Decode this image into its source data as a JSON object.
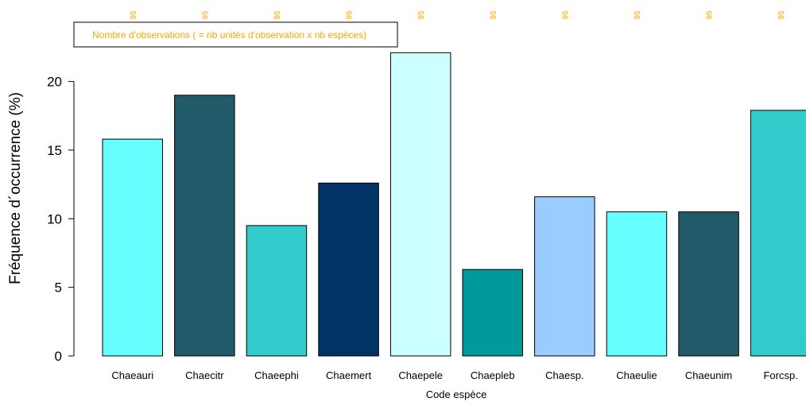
{
  "chart_data": {
    "type": "bar",
    "categories": [
      "Chaeauri",
      "Chaecitr",
      "Chaeephi",
      "Chaemert",
      "Chaepele",
      "Chaepleb",
      "Chaesp.",
      "Chaeulie",
      "Chaeunim",
      "Forcsp."
    ],
    "values": [
      15.8,
      19.0,
      9.5,
      12.6,
      22.1,
      6.3,
      11.6,
      10.5,
      10.5,
      17.9
    ],
    "bar_colors": [
      "#66FFFF",
      "#225A69",
      "#33CCCC",
      "#003366",
      "#CCFFFF",
      "#009999",
      "#99CCFF",
      "#66FFFF",
      "#225A69",
      "#33CCCC"
    ],
    "counts": [
      "95",
      "95",
      "95",
      "95",
      "95",
      "95",
      "95",
      "95",
      "95",
      "95"
    ],
    "count_color": "#FFA500",
    "legend": {
      "text": "Nombre d'observations ( = nb unités d'observation x nb espèces)",
      "color": "#FFA500",
      "position": "top-left"
    },
    "xlabel": "Code espèce",
    "ylabel": "Fréquence d´occurrence (%)",
    "ylim": [
      0,
      22.1
    ],
    "yticks": [
      "0",
      "5",
      "10",
      "15",
      "20"
    ],
    "ytick_values": [
      0,
      5,
      10,
      15,
      20
    ],
    "grid": false
  }
}
